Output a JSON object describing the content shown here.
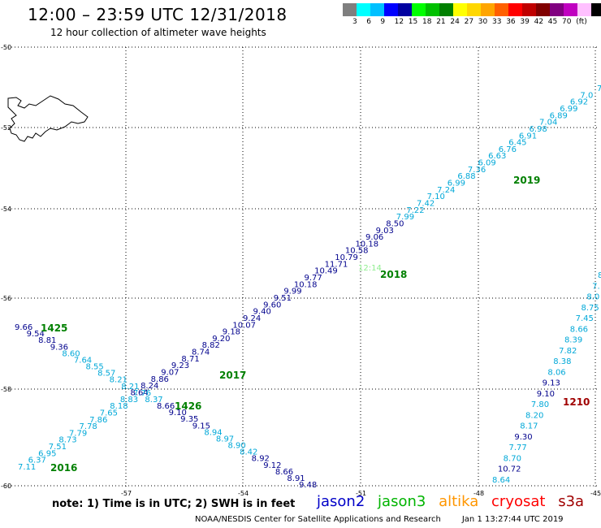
{
  "title": "12:00 – 23:59 UTC 12/31/2018",
  "subtitle": "12 hour collection of altimeter wave heights",
  "legend": {
    "colors": [
      "#7f7f7f",
      "#00ffff",
      "#00c0ff",
      "#0000ff",
      "#0000a0",
      "#00ff00",
      "#00c000",
      "#008000",
      "#ffff00",
      "#ffd700",
      "#ffa500",
      "#ff6000",
      "#ff0000",
      "#c00000",
      "#800000",
      "#800080",
      "#c000c0",
      "#ffc0ff",
      "#000000"
    ],
    "labels": [
      "3",
      "6",
      "9",
      "12",
      "15",
      "18",
      "21",
      "24",
      "27",
      "30",
      "33",
      "36",
      "39",
      "42",
      "45",
      "70",
      "(ft)"
    ]
  },
  "axes": {
    "lon_labels": [
      "-57",
      "-54",
      "-51",
      "-48",
      "-45"
    ],
    "lat_labels": [
      "-50",
      "-52",
      "-54",
      "-56",
      "-58",
      "-60"
    ],
    "corner_label": "-60"
  },
  "labels_2019": "2019",
  "labels_2018": "2018",
  "labels_2017": "2017",
  "labels_2016": "2016",
  "labels_1425": "1425",
  "labels_1426": "1426",
  "labels_1210": "1210",
  "label_1214": "12:14",
  "colors": {
    "jason2": "#0000c8",
    "jason3": "#00b400",
    "jason3_green_dark": "#008000",
    "altika": "#ff9600",
    "cryosat": "#ff0000",
    "s3a": "#a00000",
    "cyan": "#00a8d8",
    "navy": "#00008c"
  },
  "tracks": {
    "track_a_upper": [
      "7.",
      "7.0",
      "6.92",
      "6.99",
      "6.89",
      "7.04",
      "6.98",
      "6.91",
      "6.45",
      "6.76",
      "6.63",
      "6.09",
      "7.36",
      "6.88",
      "6.99",
      "7.24",
      "7.10",
      "7.42",
      "7.22",
      "7.99",
      "8.50",
      "9.03",
      "9.06",
      "10.18",
      "10.58",
      "10.79",
      "11.71",
      "10.49",
      "9.77",
      "10.18",
      "9.99",
      "9.51",
      "9.60",
      "9.40",
      "9.24",
      "10.07",
      "9.18",
      "9.20",
      "8.82",
      "8.74",
      "8.71",
      "9.23",
      "9.07",
      "8.86",
      "8.24",
      "8.64",
      "8.83",
      "8.18",
      "7.65",
      "7.86",
      "7.78",
      "7.79",
      "8.73",
      "7.51",
      "6.95",
      "6.37",
      "7.11"
    ],
    "track_b": [
      "9.66",
      "9.54",
      "8.81",
      "9.36",
      "8.60",
      "7.64",
      "8.55",
      "8.57",
      "8.21",
      "8.21",
      "7.76",
      "8.37",
      "8.66",
      "9.10",
      "9.35",
      "9.15",
      "8.94",
      "8.97",
      "8.90",
      "8.42",
      "8.92",
      "9.12",
      "8.66",
      "8.91",
      "9.48"
    ],
    "track_c": [
      "8",
      "7.",
      "8.0",
      "8.75",
      "7.45",
      "8.66",
      "8.39",
      "7.82",
      "8.38",
      "8.06",
      "9.13",
      "9.10",
      "7.80",
      "8.20",
      "8.17",
      "9.30",
      "7.77",
      "8.70",
      "10.72",
      "8.64"
    ]
  },
  "note": "note:  1) Time is in UTC;  2) SWH is in feet",
  "satellites": [
    "jason2",
    "jason3",
    "altika",
    "cryosat",
    "s3a"
  ],
  "credit": "NOAA/NESDIS Center for Satellite Applications and Research",
  "timestamp": "Jan  1 13:27:44 UTC 2019"
}
